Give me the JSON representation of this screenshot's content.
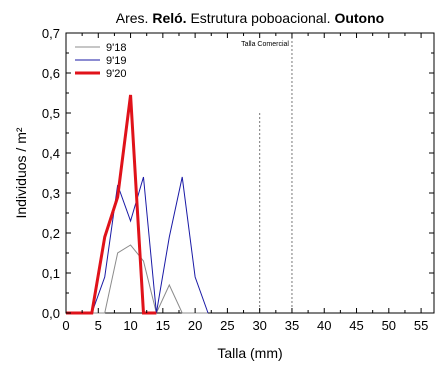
{
  "chart_data": {
    "type": "line",
    "title_parts": [
      {
        "text": "Ares. ",
        "bold": false
      },
      {
        "text": "Reló.",
        "bold": true
      },
      {
        "text": " Estrutura poboacional. ",
        "bold": false
      },
      {
        "text": "Outono",
        "bold": true
      }
    ],
    "xlabel": "Talla (mm)",
    "ylabel": "Individuos / m²",
    "xlim": [
      0,
      57
    ],
    "ylim": [
      0,
      0.7
    ],
    "x_ticks": [
      0,
      5,
      10,
      15,
      20,
      25,
      30,
      35,
      40,
      45,
      50,
      55
    ],
    "x_tick_labels": [
      "0",
      "5",
      "10",
      "15",
      "20",
      "25",
      "30",
      "35",
      "40",
      "45",
      "50",
      "55"
    ],
    "y_ticks": [
      0,
      0.1,
      0.2,
      0.3,
      0.4,
      0.5,
      0.6,
      0.7
    ],
    "y_tick_labels": [
      "0,0",
      "0,1",
      "0,2",
      "0,3",
      "0,4",
      "0,5",
      "0,6",
      "0,7"
    ],
    "grid": false,
    "legend_position": "top-left",
    "series": [
      {
        "name": "9'18",
        "color": "#8c8c8c",
        "width": 1,
        "x": [
          0,
          2,
          4,
          6,
          8,
          10,
          12,
          14,
          16,
          18,
          20,
          22
        ],
        "y": [
          0,
          0,
          0,
          0,
          0.15,
          0.17,
          0.13,
          0,
          0.07,
          0,
          0,
          0
        ]
      },
      {
        "name": "9'19",
        "color": "#1a1aa6",
        "width": 1,
        "x": [
          0,
          2,
          4,
          6,
          8,
          10,
          12,
          14,
          16,
          18,
          20,
          22
        ],
        "y": [
          0,
          0,
          0,
          0.09,
          0.32,
          0.23,
          0.34,
          0,
          0.19,
          0.34,
          0.09,
          0
        ]
      },
      {
        "name": "9'20",
        "color": "#e0121a",
        "width": 3,
        "x": [
          0,
          2,
          4,
          6,
          8,
          10,
          12,
          14
        ],
        "y": [
          0,
          0,
          0,
          0.19,
          0.29,
          0.545,
          0,
          0
        ]
      }
    ],
    "reference_lines": [
      {
        "x": 30,
        "y_top": 0.5,
        "label": ""
      },
      {
        "x": 35,
        "y_top": 0.7,
        "label": "Talla Comercial"
      }
    ]
  }
}
